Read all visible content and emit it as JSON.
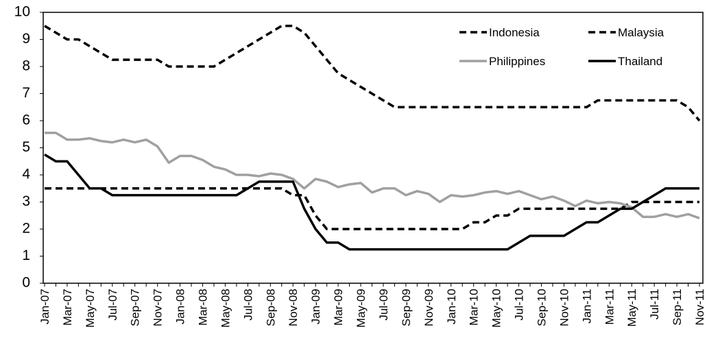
{
  "chart_data": {
    "type": "line",
    "categories": [
      "Jan-07",
      null,
      "Mar-07",
      null,
      "May-07",
      null,
      "Jul-07",
      null,
      "Sep-07",
      null,
      "Nov-07",
      null,
      "Jan-08",
      null,
      "Mar-08",
      null,
      "May-08",
      null,
      "Jul-08",
      null,
      "Sep-08",
      null,
      "Nov-08",
      null,
      "Jan-09",
      null,
      "Mar-09",
      null,
      "May-09",
      null,
      "Jul-09",
      null,
      "Sep-09",
      null,
      "Nov-09",
      null,
      "Jan-10",
      null,
      "Mar-10",
      null,
      "May-10",
      null,
      "Jul-10",
      null,
      "Sep-10",
      null,
      "Nov-10",
      null,
      "Jan-11",
      null,
      "Mar-11",
      null,
      "May-11",
      null,
      "Jul-11",
      null,
      "Sep-11",
      null,
      "Nov-11"
    ],
    "series": [
      {
        "name": "Indonesia",
        "color": "#000000",
        "dash": true,
        "values": [
          9.5,
          9.25,
          9,
          9,
          8.75,
          8.5,
          8.25,
          8.25,
          8.25,
          8.25,
          8.25,
          8,
          8,
          8,
          8,
          8,
          8.25,
          8.5,
          8.75,
          9,
          9.25,
          9.5,
          9.5,
          9.25,
          8.75,
          8.25,
          7.75,
          7.5,
          7.25,
          7,
          6.75,
          6.5,
          6.5,
          6.5,
          6.5,
          6.5,
          6.5,
          6.5,
          6.5,
          6.5,
          6.5,
          6.5,
          6.5,
          6.5,
          6.5,
          6.5,
          6.5,
          6.5,
          6.5,
          6.75,
          6.75,
          6.75,
          6.75,
          6.75,
          6.75,
          6.75,
          6.75,
          6.5,
          6
        ]
      },
      {
        "name": "Malaysia",
        "color": "#000000",
        "dash": true,
        "values": [
          3.5,
          3.5,
          3.5,
          3.5,
          3.5,
          3.5,
          3.5,
          3.5,
          3.5,
          3.5,
          3.5,
          3.5,
          3.5,
          3.5,
          3.5,
          3.5,
          3.5,
          3.5,
          3.5,
          3.5,
          3.5,
          3.5,
          3.25,
          3.25,
          2.5,
          2,
          2,
          2,
          2,
          2,
          2,
          2,
          2,
          2,
          2,
          2,
          2,
          2,
          2.25,
          2.25,
          2.5,
          2.5,
          2.75,
          2.75,
          2.75,
          2.75,
          2.75,
          2.75,
          2.75,
          2.75,
          2.75,
          2.75,
          3,
          3,
          3,
          3,
          3,
          3,
          3
        ]
      },
      {
        "name": "Philippines",
        "color": "#a0a0a0",
        "dash": false,
        "values": [
          5.55,
          5.55,
          5.3,
          5.3,
          5.35,
          5.25,
          5.2,
          5.3,
          5.2,
          5.3,
          5.05,
          4.45,
          4.7,
          4.7,
          4.55,
          4.3,
          4.2,
          4,
          4,
          3.95,
          4.05,
          4,
          3.85,
          3.5,
          3.85,
          3.75,
          3.55,
          3.65,
          3.7,
          3.35,
          3.5,
          3.5,
          3.25,
          3.4,
          3.3,
          3,
          3.25,
          3.2,
          3.25,
          3.35,
          3.4,
          3.3,
          3.4,
          3.25,
          3.1,
          3.2,
          3.05,
          2.85,
          3.05,
          2.95,
          3,
          2.95,
          2.8,
          2.45,
          2.45,
          2.55,
          2.45,
          2.55,
          2.4
        ]
      },
      {
        "name": "Thailand",
        "color": "#000000",
        "dash": false,
        "values": [
          4.75,
          4.5,
          4.5,
          4,
          3.5,
          3.5,
          3.25,
          3.25,
          3.25,
          3.25,
          3.25,
          3.25,
          3.25,
          3.25,
          3.25,
          3.25,
          3.25,
          3.25,
          3.5,
          3.75,
          3.75,
          3.75,
          3.75,
          2.75,
          2,
          1.5,
          1.5,
          1.25,
          1.25,
          1.25,
          1.25,
          1.25,
          1.25,
          1.25,
          1.25,
          1.25,
          1.25,
          1.25,
          1.25,
          1.25,
          1.25,
          1.25,
          1.5,
          1.75,
          1.75,
          1.75,
          1.75,
          2,
          2.25,
          2.25,
          2.5,
          2.75,
          2.75,
          3,
          3.25,
          3.5,
          3.5,
          3.5,
          3.5
        ]
      }
    ],
    "ylim": [
      0,
      10
    ],
    "yticks": [
      0,
      1,
      2,
      3,
      4,
      5,
      6,
      7,
      8,
      9,
      10
    ],
    "grid": false,
    "legend": "top-right"
  }
}
